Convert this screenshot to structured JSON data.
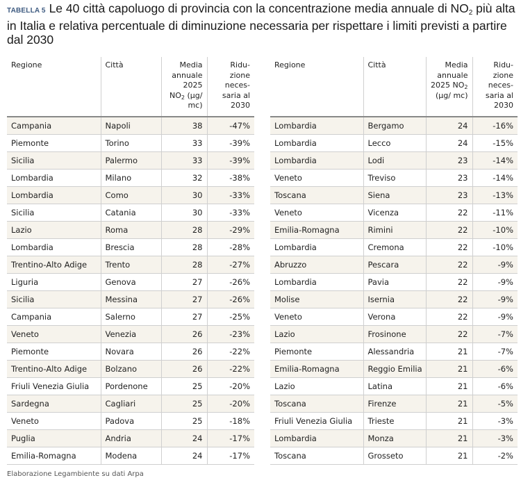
{
  "title": {
    "tag": "TABELLA 5",
    "text_before_sub": "Le 40 città capoluogo di provincia con la concentrazione media annuale di NO",
    "sub": "2",
    "text_after_sub": " più alta in Italia e relativa percentuale di diminuzione necessaria per rispettare i limiti previsti a partire dal 2030"
  },
  "headers": {
    "regione": "Regione",
    "citta": "Città",
    "media_pre": "Media annuale 2025 NO",
    "media_sub": "2",
    "media_post": " (µg/ mc)",
    "riduzione": "Ridu- zione neces- saria al 2030"
  },
  "left_rows": [
    [
      "Campania",
      "Napoli",
      "38",
      "-47%"
    ],
    [
      "Piemonte",
      "Torino",
      "33",
      "-39%"
    ],
    [
      "Sicilia",
      "Palermo",
      "33",
      "-39%"
    ],
    [
      "Lombardia",
      "Milano",
      "32",
      "-38%"
    ],
    [
      "Lombardia",
      "Como",
      "30",
      "-33%"
    ],
    [
      "Sicilia",
      "Catania",
      "30",
      "-33%"
    ],
    [
      "Lazio",
      "Roma",
      "28",
      "-29%"
    ],
    [
      "Lombardia",
      "Brescia",
      "28",
      "-28%"
    ],
    [
      "Trentino-Alto Adige",
      "Trento",
      "28",
      "-27%"
    ],
    [
      "Liguria",
      "Genova",
      "27",
      "-26%"
    ],
    [
      "Sicilia",
      "Messina",
      "27",
      "-26%"
    ],
    [
      "Campania",
      "Salerno",
      "27",
      "-25%"
    ],
    [
      "Veneto",
      "Venezia",
      "26",
      "-23%"
    ],
    [
      "Piemonte",
      "Novara",
      "26",
      "-22%"
    ],
    [
      "Trentino-Alto Adige",
      "Bolzano",
      "26",
      "-22%"
    ],
    [
      "Friuli Venezia Giulia",
      "Pordenone",
      "25",
      "-20%"
    ],
    [
      "Sardegna",
      "Cagliari",
      "25",
      "-20%"
    ],
    [
      "Veneto",
      "Padova",
      "25",
      "-18%"
    ],
    [
      "Puglia",
      "Andria",
      "24",
      "-17%"
    ],
    [
      "Emilia-Romagna",
      "Modena",
      "24",
      "-17%"
    ]
  ],
  "right_rows": [
    [
      "Lombardia",
      "Bergamo",
      "24",
      "-16%"
    ],
    [
      "Lombardia",
      "Lecco",
      "24",
      "-15%"
    ],
    [
      "Lombardia",
      "Lodi",
      "23",
      "-14%"
    ],
    [
      "Veneto",
      "Treviso",
      "23",
      "-14%"
    ],
    [
      "Toscana",
      "Siena",
      "23",
      "-13%"
    ],
    [
      "Veneto",
      "Vicenza",
      "22",
      "-11%"
    ],
    [
      "Emilia-Romagna",
      "Rimini",
      "22",
      "-10%"
    ],
    [
      "Lombardia",
      "Cremona",
      "22",
      "-10%"
    ],
    [
      "Abruzzo",
      "Pescara",
      "22",
      "-9%"
    ],
    [
      "Lombardia",
      "Pavia",
      "22",
      "-9%"
    ],
    [
      "Molise",
      "Isernia",
      "22",
      "-9%"
    ],
    [
      "Veneto",
      "Verona",
      "22",
      "-9%"
    ],
    [
      "Lazio",
      "Frosinone",
      "22",
      "-7%"
    ],
    [
      "Piemonte",
      "Alessandria",
      "21",
      "-7%"
    ],
    [
      "Emilia-Romagna",
      "Reggio Emilia",
      "21",
      "-6%"
    ],
    [
      "Lazio",
      "Latina",
      "21",
      "-6%"
    ],
    [
      "Toscana",
      "Firenze",
      "21",
      "-5%"
    ],
    [
      "Friuli Venezia Giulia",
      "Trieste",
      "21",
      "-3%"
    ],
    [
      "Lombardia",
      "Monza",
      "21",
      "-3%"
    ],
    [
      "Toscana",
      "Grosseto",
      "21",
      "-2%"
    ]
  ],
  "footer": "Elaborazione Legambiente su dati Arpa",
  "colors": {
    "tag": "#3d5a80",
    "row_shade": "#f6f3ec"
  }
}
